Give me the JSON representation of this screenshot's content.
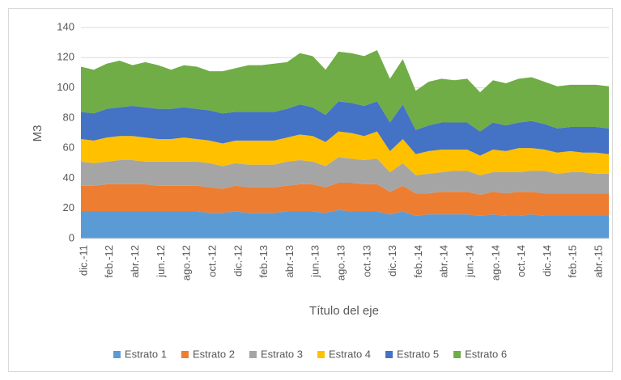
{
  "chart_data": {
    "type": "stacked_area",
    "y_label": "M3",
    "x_label": "Título del eje",
    "categories": [
      "dic.-11",
      null,
      "feb.-12",
      null,
      "abr.-12",
      null,
      "jun.-12",
      null,
      "ago.-12",
      null,
      "oct.-12",
      null,
      "dic.-12",
      null,
      "feb.-13",
      null,
      "abr.-13",
      null,
      "jun.-13",
      null,
      "ago.-13",
      null,
      "oct.-13",
      null,
      "dic.-13",
      null,
      "feb.-14",
      null,
      "abr.-14",
      null,
      "jun.-14",
      null,
      "ago.-14",
      null,
      "oct.-14",
      null,
      "dic.-14",
      null,
      "feb.-15",
      null,
      "abr.-15",
      null
    ],
    "ylim": [
      0,
      140
    ],
    "yticks": [
      0,
      20,
      40,
      60,
      80,
      100,
      120,
      140
    ],
    "grid": true,
    "legend": "bottom",
    "series": [
      {
        "name": "Estrato 1",
        "color": "#5b9bd5",
        "values": [
          18,
          18,
          18,
          18,
          18,
          18,
          18,
          18,
          18,
          18,
          17,
          17,
          18,
          17,
          17,
          17,
          18,
          18,
          18,
          17,
          19,
          18,
          18,
          18,
          16,
          18,
          15,
          16,
          16,
          16,
          16,
          15,
          16,
          15,
          15,
          16,
          15,
          15,
          15,
          15,
          15,
          15
        ]
      },
      {
        "name": "Estrato 2",
        "color": "#ed7d31",
        "values": [
          17,
          17,
          18,
          18,
          18,
          18,
          17,
          17,
          17,
          17,
          17,
          16,
          17,
          17,
          17,
          17,
          17,
          18,
          18,
          17,
          18,
          19,
          18,
          18,
          15,
          17,
          15,
          14,
          15,
          15,
          15,
          14,
          15,
          15,
          16,
          15,
          15,
          15,
          15,
          15,
          15,
          15
        ]
      },
      {
        "name": "Estrato 3",
        "color": "#a5a5a5",
        "values": [
          16,
          15,
          15,
          16,
          16,
          15,
          16,
          16,
          16,
          16,
          16,
          15,
          15,
          15,
          15,
          15,
          16,
          16,
          15,
          14,
          17,
          16,
          16,
          17,
          13,
          15,
          12,
          13,
          13,
          14,
          14,
          13,
          13,
          14,
          13,
          14,
          15,
          13,
          14,
          14,
          13,
          13
        ]
      },
      {
        "name": "Estrato 4",
        "color": "#ffc000",
        "values": [
          15,
          15,
          16,
          16,
          16,
          16,
          15,
          15,
          16,
          15,
          15,
          15,
          15,
          16,
          16,
          16,
          16,
          17,
          17,
          16,
          17,
          17,
          16,
          18,
          14,
          16,
          14,
          15,
          15,
          14,
          14,
          13,
          15,
          14,
          16,
          15,
          14,
          14,
          14,
          13,
          14,
          13
        ]
      },
      {
        "name": "Estrato 5",
        "color": "#4472c4",
        "values": [
          18,
          18,
          19,
          19,
          20,
          20,
          20,
          20,
          20,
          20,
          20,
          20,
          19,
          19,
          19,
          19,
          19,
          20,
          19,
          18,
          20,
          20,
          20,
          20,
          19,
          23,
          16,
          17,
          18,
          18,
          18,
          16,
          18,
          17,
          17,
          18,
          17,
          16,
          16,
          17,
          17,
          17
        ]
      },
      {
        "name": "Estrato 6",
        "color": "#70ad47",
        "values": [
          30,
          29,
          30,
          31,
          27,
          30,
          29,
          26,
          28,
          28,
          26,
          28,
          29,
          31,
          31,
          32,
          31,
          34,
          34,
          30,
          33,
          33,
          33,
          34,
          29,
          30,
          26,
          29,
          29,
          28,
          29,
          26,
          28,
          28,
          29,
          29,
          28,
          28,
          28,
          28,
          28,
          28
        ]
      }
    ]
  }
}
